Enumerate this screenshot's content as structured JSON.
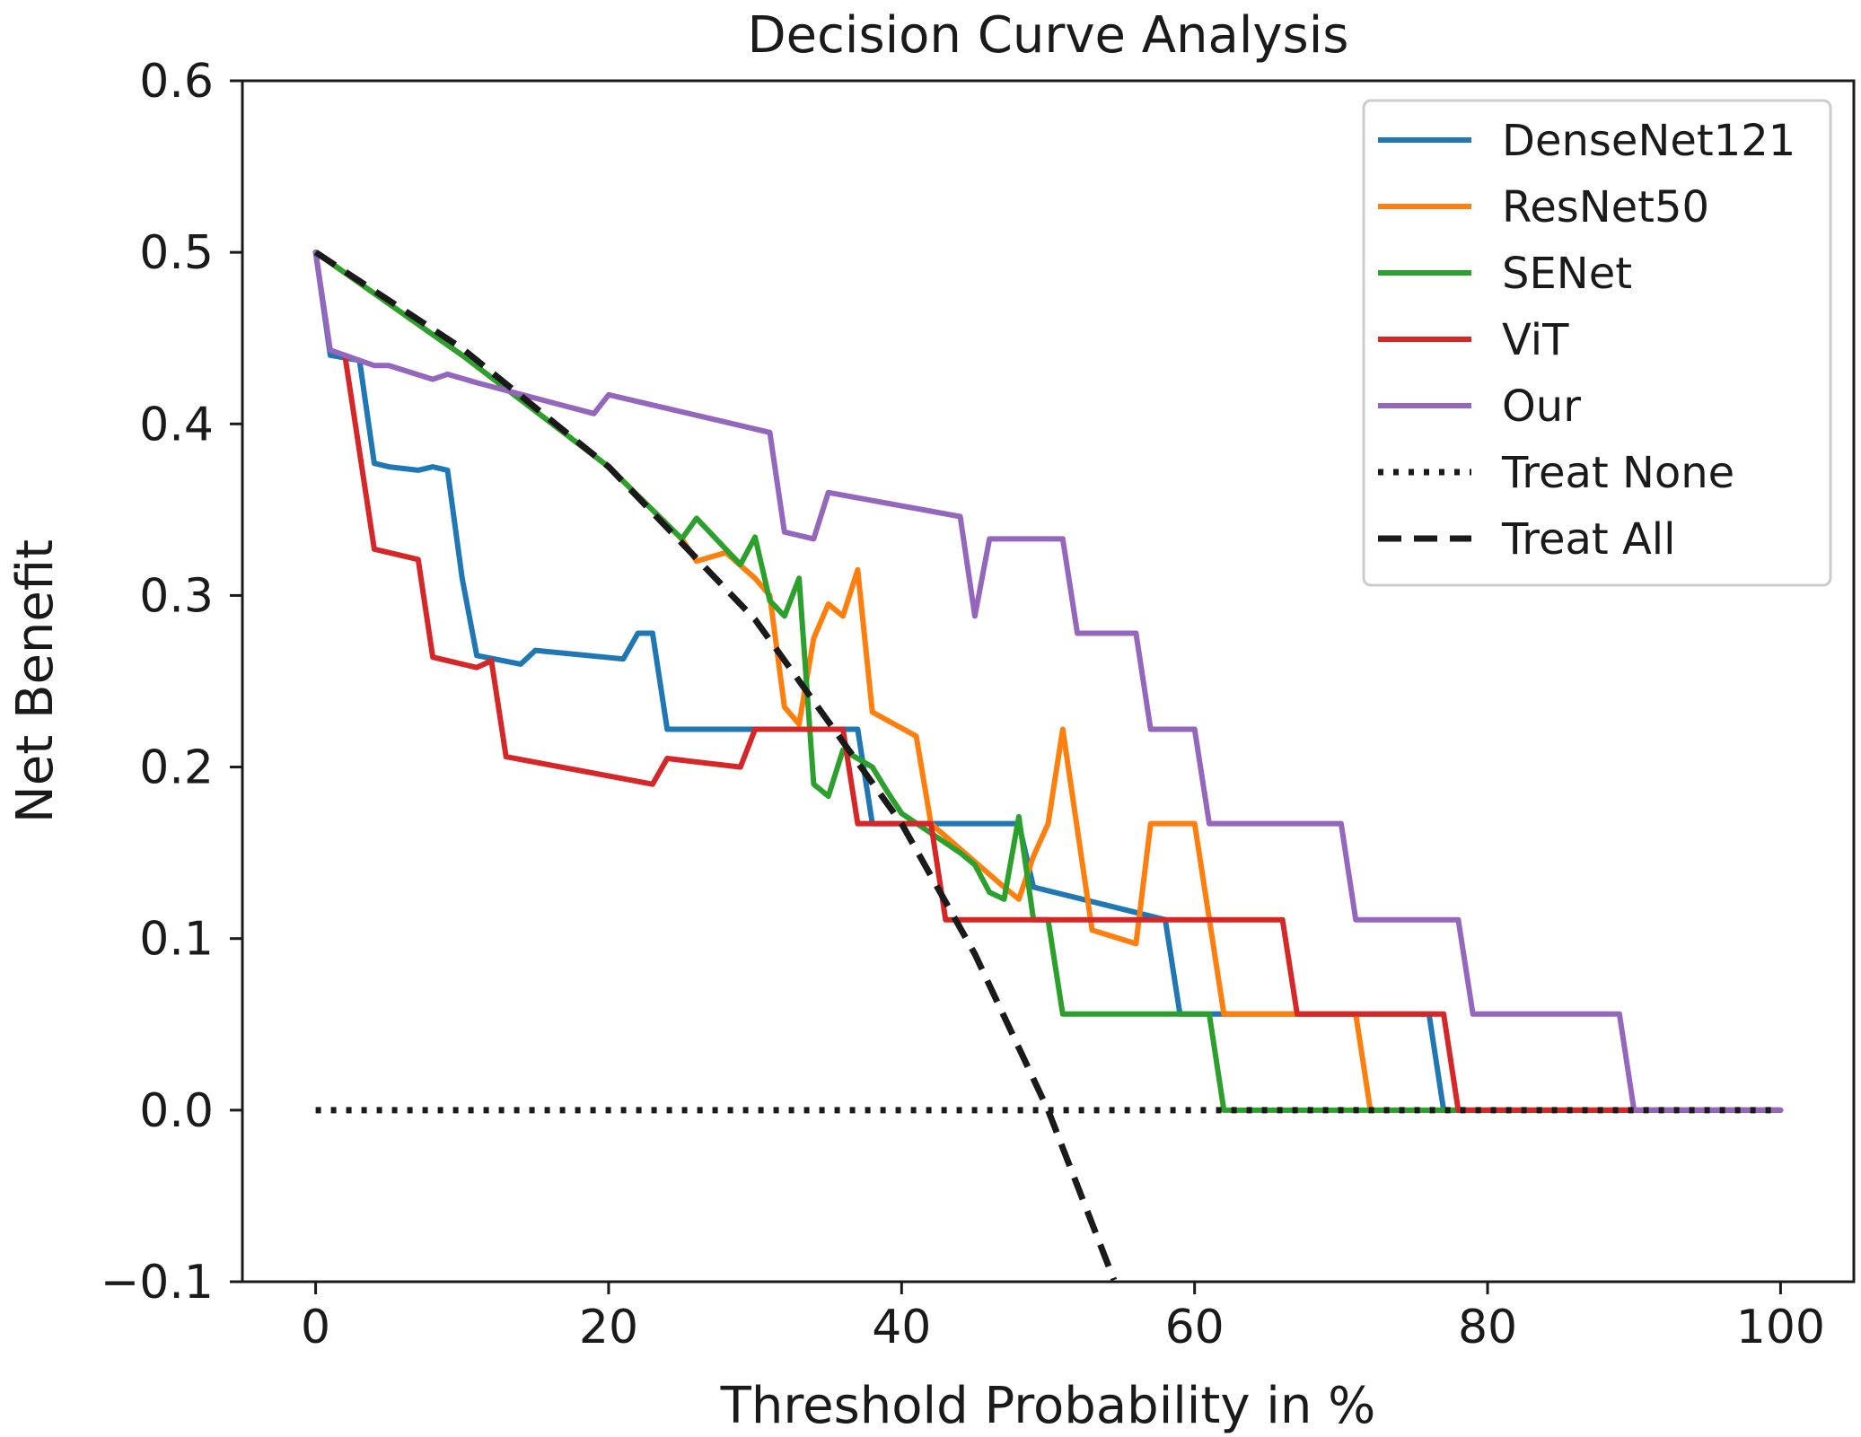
{
  "chart_data": {
    "type": "line",
    "title": "Decision Curve Analysis",
    "xlabel": "Threshold Probability in %",
    "ylabel": "Net Benefit",
    "xlim": [
      -5,
      105
    ],
    "ylim": [
      -0.1,
      0.6
    ],
    "xticks": [
      0,
      20,
      40,
      60,
      80,
      100
    ],
    "xtick_labels": [
      "0",
      "20",
      "40",
      "60",
      "80",
      "100"
    ],
    "yticks": [
      -0.1,
      0.0,
      0.1,
      0.2,
      0.3,
      0.4,
      0.5,
      0.6
    ],
    "ytick_labels": [
      "−0.1",
      "0.0",
      "0.1",
      "0.2",
      "0.3",
      "0.4",
      "0.5",
      "0.6"
    ],
    "grid": false,
    "legend_position": "top-right",
    "series": [
      {
        "name": "DenseNet121",
        "color": "#1f77b4",
        "style": "solid",
        "points": [
          [
            0,
            0.5
          ],
          [
            1,
            0.44
          ],
          [
            3,
            0.437
          ],
          [
            4,
            0.377
          ],
          [
            5,
            0.375
          ],
          [
            7,
            0.373
          ],
          [
            8,
            0.375
          ],
          [
            9,
            0.373
          ],
          [
            10,
            0.31
          ],
          [
            11,
            0.265
          ],
          [
            14,
            0.26
          ],
          [
            15,
            0.268
          ],
          [
            21,
            0.263
          ],
          [
            22,
            0.278
          ],
          [
            23,
            0.278
          ],
          [
            24,
            0.222
          ],
          [
            37,
            0.222
          ],
          [
            38,
            0.167
          ],
          [
            48,
            0.167
          ],
          [
            49,
            0.13
          ],
          [
            58,
            0.111
          ],
          [
            59,
            0.056
          ],
          [
            76,
            0.056
          ],
          [
            77,
            0.0
          ],
          [
            100,
            0.0
          ]
        ]
      },
      {
        "name": "ResNet50",
        "color": "#ff7f0e",
        "style": "solid",
        "points": [
          [
            0,
            0.5
          ],
          [
            10,
            0.44
          ],
          [
            20,
            0.375
          ],
          [
            25,
            0.333
          ],
          [
            26,
            0.32
          ],
          [
            28,
            0.325
          ],
          [
            30,
            0.31
          ],
          [
            31,
            0.3
          ],
          [
            32,
            0.235
          ],
          [
            33,
            0.225
          ],
          [
            34,
            0.275
          ],
          [
            35,
            0.295
          ],
          [
            36,
            0.288
          ],
          [
            37,
            0.315
          ],
          [
            38,
            0.232
          ],
          [
            41,
            0.218
          ],
          [
            42,
            0.167
          ],
          [
            47,
            0.13
          ],
          [
            48,
            0.123
          ],
          [
            49,
            0.148
          ],
          [
            50,
            0.167
          ],
          [
            51,
            0.222
          ],
          [
            53,
            0.105
          ],
          [
            56,
            0.097
          ],
          [
            57,
            0.167
          ],
          [
            60,
            0.167
          ],
          [
            62,
            0.056
          ],
          [
            71,
            0.056
          ],
          [
            72,
            0.0
          ],
          [
            100,
            0.0
          ]
        ]
      },
      {
        "name": "SENet",
        "color": "#2ca02c",
        "style": "solid",
        "points": [
          [
            0,
            0.5
          ],
          [
            10,
            0.44
          ],
          [
            20,
            0.375
          ],
          [
            25,
            0.333
          ],
          [
            26,
            0.345
          ],
          [
            29,
            0.318
          ],
          [
            30,
            0.334
          ],
          [
            31,
            0.297
          ],
          [
            32,
            0.288
          ],
          [
            33,
            0.31
          ],
          [
            34,
            0.19
          ],
          [
            35,
            0.183
          ],
          [
            36,
            0.21
          ],
          [
            38,
            0.2
          ],
          [
            39,
            0.186
          ],
          [
            40,
            0.173
          ],
          [
            44,
            0.15
          ],
          [
            45,
            0.143
          ],
          [
            46,
            0.127
          ],
          [
            47,
            0.123
          ],
          [
            48,
            0.171
          ],
          [
            49,
            0.111
          ],
          [
            50,
            0.111
          ],
          [
            51,
            0.056
          ],
          [
            61,
            0.056
          ],
          [
            62,
            0.0
          ],
          [
            100,
            0.0
          ]
        ]
      },
      {
        "name": "ViT",
        "color": "#d62728",
        "style": "solid",
        "points": [
          [
            2,
            0.44
          ],
          [
            4,
            0.327
          ],
          [
            7,
            0.321
          ],
          [
            8,
            0.264
          ],
          [
            11,
            0.258
          ],
          [
            12,
            0.262
          ],
          [
            13,
            0.206
          ],
          [
            23,
            0.19
          ],
          [
            24,
            0.205
          ],
          [
            29,
            0.2
          ],
          [
            30,
            0.222
          ],
          [
            36,
            0.222
          ],
          [
            37,
            0.167
          ],
          [
            42,
            0.167
          ],
          [
            43,
            0.111
          ],
          [
            66,
            0.111
          ],
          [
            67,
            0.056
          ],
          [
            77,
            0.056
          ],
          [
            78,
            0.0
          ],
          [
            100,
            0.0
          ]
        ]
      },
      {
        "name": "Our",
        "color": "#9467bd",
        "style": "solid",
        "points": [
          [
            0,
            0.5
          ],
          [
            1,
            0.443
          ],
          [
            4,
            0.434
          ],
          [
            5,
            0.434
          ],
          [
            8,
            0.426
          ],
          [
            9,
            0.429
          ],
          [
            11,
            0.424
          ],
          [
            19,
            0.406
          ],
          [
            20,
            0.417
          ],
          [
            31,
            0.395
          ],
          [
            32,
            0.337
          ],
          [
            34,
            0.333
          ],
          [
            35,
            0.36
          ],
          [
            44,
            0.346
          ],
          [
            45,
            0.288
          ],
          [
            46,
            0.333
          ],
          [
            51,
            0.333
          ],
          [
            52,
            0.278
          ],
          [
            56,
            0.278
          ],
          [
            57,
            0.222
          ],
          [
            60,
            0.222
          ],
          [
            61,
            0.167
          ],
          [
            70,
            0.167
          ],
          [
            71,
            0.111
          ],
          [
            78,
            0.111
          ],
          [
            79,
            0.056
          ],
          [
            89,
            0.056
          ],
          [
            90,
            0.0
          ],
          [
            100,
            0.0
          ]
        ]
      },
      {
        "name": "Treat None",
        "color": "#1a1a1a",
        "style": "dotted",
        "points": [
          [
            0,
            0.0
          ],
          [
            100,
            0.0
          ]
        ]
      },
      {
        "name": "Treat All",
        "color": "#1a1a1a",
        "style": "dashed",
        "formula": "0.5 - 0.5 * t / (100 - t)",
        "points": [
          [
            0,
            0.5
          ],
          [
            10,
            0.444
          ],
          [
            20,
            0.375
          ],
          [
            30,
            0.286
          ],
          [
            40,
            0.167
          ],
          [
            45,
            0.091
          ],
          [
            50,
            0.0
          ],
          [
            54.5,
            -0.099
          ]
        ]
      }
    ]
  }
}
